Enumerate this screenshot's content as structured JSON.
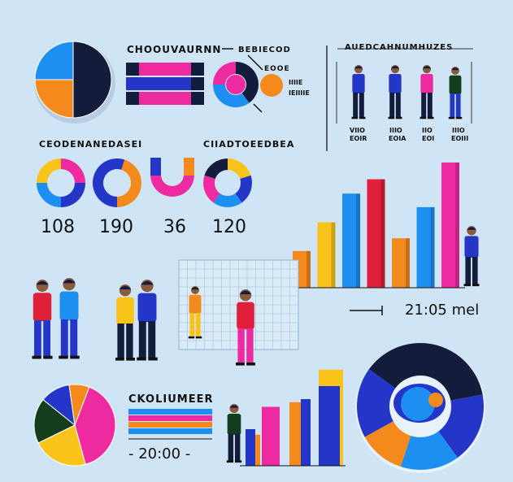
{
  "headings": {
    "top_center": "CHOOUVAURNN",
    "top_mid_a": "BEBIECOD",
    "top_mid_b": "EOOE",
    "top_right": "AUEDCAHNUMHUZES",
    "mid_left": "CEODENANEDASEI",
    "mid_center": "CIIADTOEEDBEA",
    "bottom_left": "CKOLIUMEER"
  },
  "small_text": {
    "tiny_a": "IIIIE",
    "tiny_b": "IEIIIIE",
    "person_labels": [
      "VIIO",
      "IIIO",
      "IIO",
      "IIIO"
    ],
    "person_sublabels": [
      "EOIR",
      "EOIA",
      "EOI",
      "EOIII"
    ]
  },
  "numbers": [
    "108",
    "190",
    "36",
    "120"
  ],
  "time_right": "21:05 mel",
  "time_bottom": "- 20:00 -",
  "colors": {
    "bg": "#cfe4f4",
    "navy": "#141c3c",
    "orange": "#f4891c",
    "blue": "#1c8ff0",
    "magenta": "#ee2aa0",
    "royal": "#2336c8",
    "yellow": "#f8c41a",
    "green": "#133d1c",
    "red": "#e0203a"
  },
  "chart_data": [
    {
      "type": "pie",
      "slices": [
        {
          "value": 50,
          "color": "#141c3c"
        },
        {
          "value": 25,
          "color": "#f4891c"
        },
        {
          "value": 25,
          "color": "#1c8ff0"
        }
      ]
    },
    {
      "type": "bar",
      "orientation": "horizontal-stacked",
      "rows": [
        {
          "segments": [
            {
              "value": 1,
              "color": "#141c3c"
            },
            {
              "value": 2,
              "color": "#ee2aa0"
            },
            {
              "value": 2,
              "color": "#ee2aa0"
            },
            {
              "value": 1,
              "color": "#141c3c"
            }
          ]
        },
        {
          "segments": [
            {
              "value": 1,
              "color": "#2336c8"
            },
            {
              "value": 2,
              "color": "#2336c8"
            },
            {
              "value": 2,
              "color": "#2336c8"
            },
            {
              "value": 1,
              "color": "#141c3c"
            }
          ]
        },
        {
          "segments": [
            {
              "value": 1,
              "color": "#141c3c"
            },
            {
              "value": 2,
              "color": "#ee2aa0"
            },
            {
              "value": 2,
              "color": "#ee2aa0"
            },
            {
              "value": 1,
              "color": "#141c3c"
            }
          ]
        }
      ]
    },
    {
      "type": "pie",
      "donut": true,
      "slices": [
        {
          "value": 40,
          "color": "#141c3c"
        },
        {
          "value": 35,
          "color": "#1c8ff0"
        },
        {
          "value": 25,
          "color": "#ee2aa0"
        }
      ]
    },
    {
      "type": "pie",
      "donut": true,
      "slices": [
        {
          "value": 25,
          "color": "#ee2aa0"
        },
        {
          "value": 25,
          "color": "#2336c8"
        },
        {
          "value": 25,
          "color": "#1c8ff0"
        },
        {
          "value": 25,
          "color": "#f8c41a"
        }
      ]
    },
    {
      "type": "pie",
      "donut": true,
      "slices": [
        {
          "value": 55,
          "color": "#2336c8"
        },
        {
          "value": 45,
          "color": "#f4891c"
        }
      ]
    },
    {
      "type": "pie",
      "donut": true,
      "slices": [
        {
          "value": 50,
          "color": "#f4891c"
        },
        {
          "value": 50,
          "color": "#ee2aa0"
        }
      ]
    },
    {
      "type": "pie",
      "donut": true,
      "slices": [
        {
          "value": 20,
          "color": "#f8c41a"
        },
        {
          "value": 20,
          "color": "#2336c8"
        },
        {
          "value": 20,
          "color": "#1c8ff0"
        },
        {
          "value": 20,
          "color": "#ee2aa0"
        },
        {
          "value": 20,
          "color": "#141c3c"
        }
      ]
    },
    {
      "type": "bar",
      "ylim": [
        0,
        160
      ],
      "values": [
        46,
        82,
        118,
        136,
        62,
        101,
        157
      ],
      "colors": [
        "#f4891c",
        "#f8c41a",
        "#1c8ff0",
        "#e0203a",
        "#f4891c",
        "#1c8ff0",
        "#ee2aa0"
      ]
    },
    {
      "type": "pie",
      "slices": [
        {
          "value": 40,
          "color": "#ee2aa0"
        },
        {
          "value": 22,
          "color": "#f8c41a"
        },
        {
          "value": 18,
          "color": "#133d1c"
        },
        {
          "value": 12,
          "color": "#2336c8"
        },
        {
          "value": 8,
          "color": "#f4891c"
        }
      ]
    },
    {
      "type": "bar",
      "orientation": "horizontal",
      "values": [
        1,
        1,
        1,
        1
      ],
      "colors": [
        "#1c8ff0",
        "#ee2aa0",
        "#f4891c",
        "#1c8ff0"
      ]
    },
    {
      "type": "bar",
      "ylim": [
        0,
        130
      ],
      "values": [
        40,
        76,
        82,
        124
      ],
      "colors": [
        "#f4891c",
        "#ee2aa0",
        "#f4891c",
        "#f8c41a"
      ]
    },
    {
      "type": "pie",
      "donut": true,
      "slices": [
        {
          "value": 22,
          "color": "#141c3c"
        },
        {
          "value": 18,
          "color": "#2336c8"
        },
        {
          "value": 15,
          "color": "#1c8ff0"
        },
        {
          "value": 12,
          "color": "#f4891c"
        },
        {
          "value": 18,
          "color": "#2336c8"
        },
        {
          "value": 15,
          "color": "#141c3c"
        }
      ]
    }
  ]
}
